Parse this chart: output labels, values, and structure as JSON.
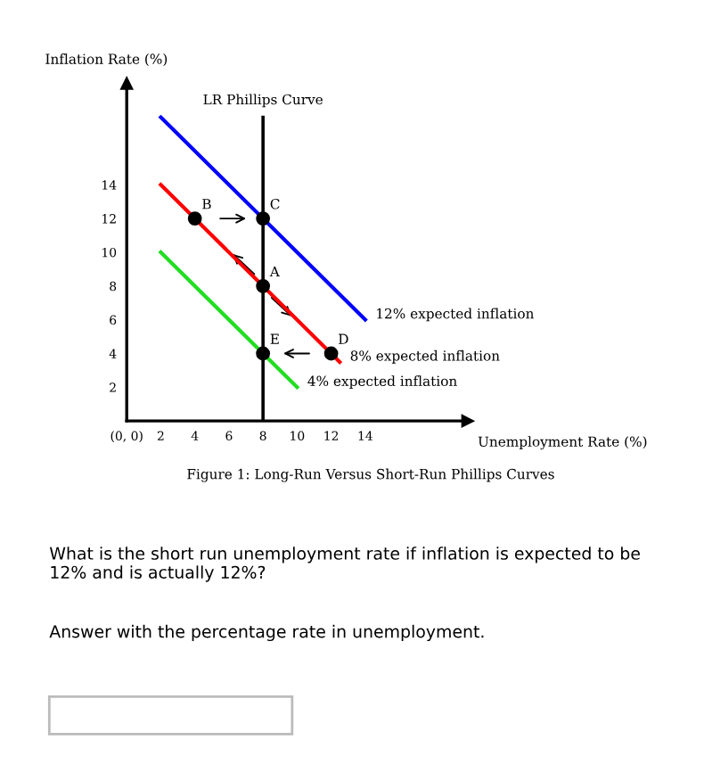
{
  "chart_data": {
    "type": "line",
    "xlabel": "Unemployment Rate (%)",
    "ylabel": "Inflation Rate (%)",
    "xlim": [
      0,
      20
    ],
    "ylim": [
      0,
      20
    ],
    "xticks": [
      {
        "value": 0,
        "label": "(0, 0)"
      },
      2,
      4,
      6,
      8,
      10,
      12,
      14
    ],
    "yticks": [
      2,
      4,
      6,
      8,
      10,
      12,
      14
    ],
    "series": [
      {
        "name": "12% expected inflation",
        "color": "#0000ff",
        "x": [
          2,
          14
        ],
        "values": [
          18,
          6
        ]
      },
      {
        "name": "8% expected inflation",
        "color": "#ff0000",
        "x": [
          2,
          12.5
        ],
        "values": [
          14,
          3.5
        ]
      },
      {
        "name": "4% expected inflation",
        "color": "#22dd22",
        "x": [
          2,
          10
        ],
        "values": [
          10,
          2
        ]
      },
      {
        "type": "scatter",
        "color": "#000000",
        "marker": "circle",
        "x": [
          4,
          8,
          8,
          12,
          8
        ],
        "values": [
          12,
          12,
          8,
          4,
          4
        ]
      }
    ],
    "ref_lines": [
      {
        "axis": "x",
        "value": 8,
        "label": "LR Phillips Curve",
        "color": "#000000"
      }
    ],
    "annotations": [
      {
        "text": "B",
        "x": 4,
        "y": 12
      },
      {
        "text": "C",
        "x": 8,
        "y": 12
      },
      {
        "text": "A",
        "x": 8,
        "y": 8
      },
      {
        "text": "D",
        "x": 12,
        "y": 4
      },
      {
        "text": "E",
        "x": 8,
        "y": 4
      },
      "Figure 1: Long-Run Versus Short-Run Phillips Curves",
      "What is the short run unemployment rate if inflation is expected to be 12% and is actually 12%?",
      "Answer with the percentage rate in unemployment."
    ]
  }
}
